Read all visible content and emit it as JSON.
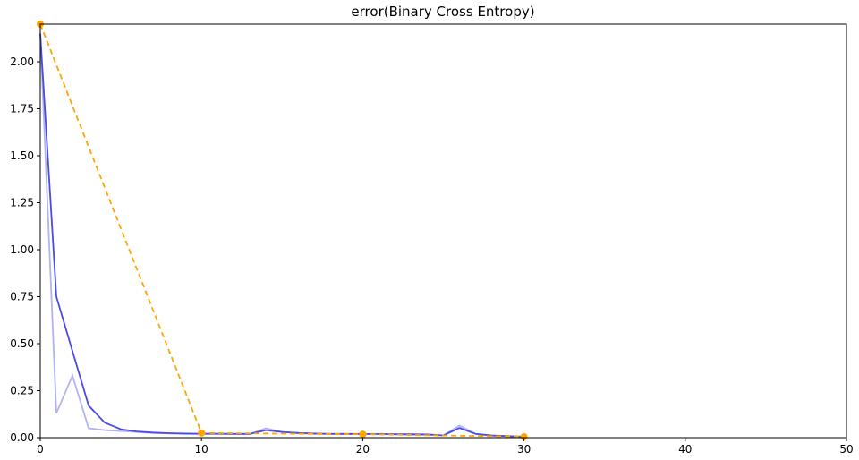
{
  "chart_data": {
    "type": "line",
    "title": "error(Binary Cross Entropy)",
    "xlabel": "",
    "ylabel": "",
    "xlim": [
      0,
      50
    ],
    "ylim": [
      0,
      2.2
    ],
    "x_ticks": [
      0,
      10,
      20,
      30,
      40,
      50
    ],
    "y_ticks": [
      0.0,
      0.25,
      0.5,
      0.75,
      1.0,
      1.25,
      1.5,
      1.75,
      2.0
    ],
    "x_tick_labels": [
      "0",
      "10",
      "20",
      "30",
      "40",
      "50"
    ],
    "y_tick_labels": [
      "0.00",
      "0.25",
      "0.50",
      "0.75",
      "1.00",
      "1.25",
      "1.50",
      "1.75",
      "2.00"
    ],
    "grid": false,
    "series": [
      {
        "color": "#b3b3f2",
        "style": "solid",
        "x": [
          0,
          1,
          2,
          3,
          4,
          5,
          6,
          7,
          8,
          9,
          10,
          11,
          12,
          13,
          14,
          15,
          16,
          17,
          18,
          19,
          20,
          21,
          22,
          23,
          24,
          25,
          26,
          27,
          28,
          29,
          30
        ],
        "y": [
          2.15,
          0.13,
          0.33,
          0.05,
          0.04,
          0.035,
          0.03,
          0.025,
          0.022,
          0.02,
          0.02,
          0.02,
          0.02,
          0.02,
          0.05,
          0.03,
          0.025,
          0.02,
          0.02,
          0.02,
          0.02,
          0.02,
          0.018,
          0.015,
          0.015,
          0.012,
          0.065,
          0.02,
          0.01,
          0.008,
          0.005
        ]
      },
      {
        "color": "#4a4ae6",
        "style": "solid",
        "x": [
          0,
          1,
          2,
          3,
          4,
          5,
          6,
          7,
          8,
          9,
          10,
          11,
          12,
          13,
          14,
          15,
          16,
          17,
          18,
          19,
          20,
          21,
          22,
          23,
          24,
          25,
          26,
          27,
          28,
          29,
          30
        ],
        "y": [
          2.15,
          0.75,
          0.46,
          0.17,
          0.08,
          0.045,
          0.033,
          0.027,
          0.024,
          0.022,
          0.021,
          0.021,
          0.02,
          0.02,
          0.04,
          0.03,
          0.025,
          0.022,
          0.02,
          0.02,
          0.019,
          0.019,
          0.018,
          0.018,
          0.017,
          0.012,
          0.052,
          0.02,
          0.012,
          0.008,
          0.005
        ]
      },
      {
        "color": "#ffa500",
        "style": "dashed",
        "markers": true,
        "x": [
          0,
          10,
          20,
          30
        ],
        "y": [
          2.2,
          0.025,
          0.018,
          0.005
        ]
      }
    ]
  }
}
